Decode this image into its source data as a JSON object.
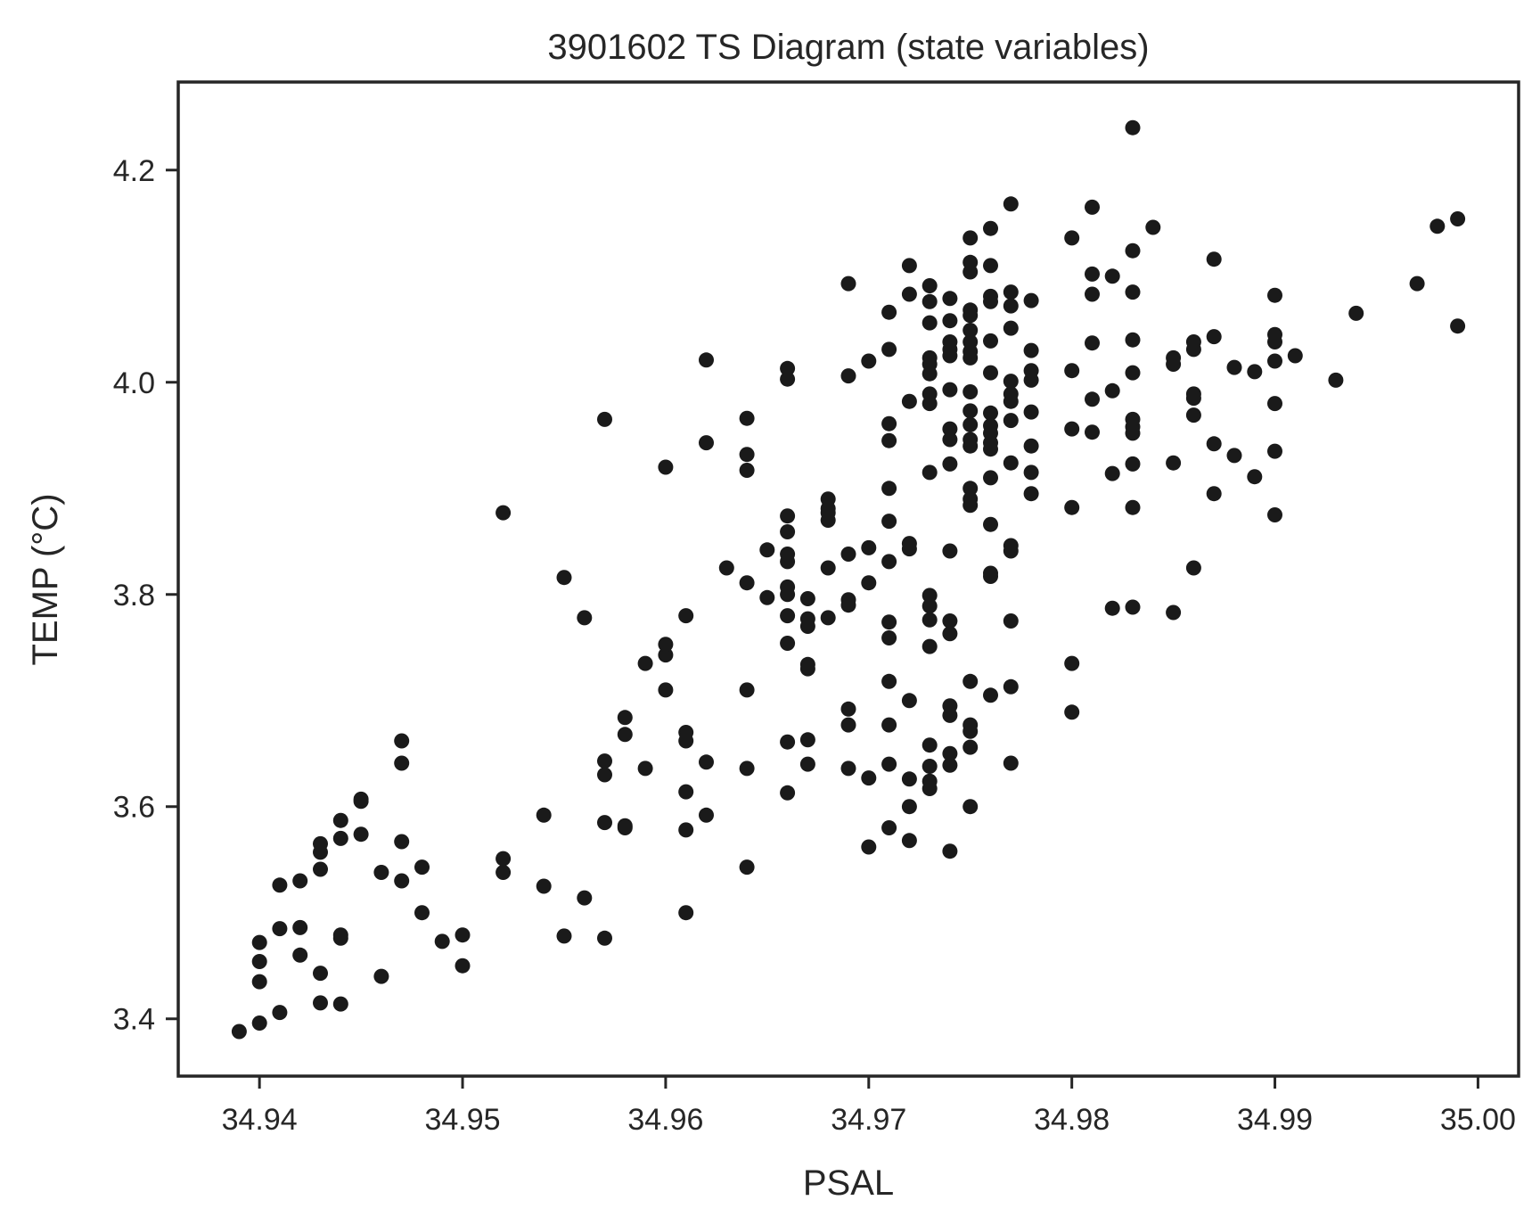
{
  "chart_data": {
    "type": "scatter",
    "title": "3901602 TS Diagram (state variables)",
    "xlabel": "PSAL",
    "ylabel": "TEMP (°C)",
    "xlim": [
      34.936,
      35.002
    ],
    "ylim": [
      3.346,
      4.283
    ],
    "xticks": [
      34.94,
      34.95,
      34.96,
      34.97,
      34.98,
      34.99,
      35.0
    ],
    "xtick_labels": [
      "34.94",
      "34.95",
      "34.96",
      "34.97",
      "34.98",
      "34.99",
      "35.00"
    ],
    "yticks": [
      3.4,
      3.6,
      3.8,
      4.0,
      4.2
    ],
    "ytick_labels": [
      "3.4",
      "3.6",
      "3.8",
      "4.0",
      "4.2"
    ],
    "grid": false,
    "marker_color": "#1a1a1a",
    "points": [
      [
        34.939,
        3.388
      ],
      [
        34.94,
        3.396
      ],
      [
        34.94,
        3.435
      ],
      [
        34.94,
        3.454
      ],
      [
        34.94,
        3.472
      ],
      [
        34.941,
        3.406
      ],
      [
        34.941,
        3.485
      ],
      [
        34.941,
        3.526
      ],
      [
        34.942,
        3.46
      ],
      [
        34.942,
        3.486
      ],
      [
        34.942,
        3.53
      ],
      [
        34.943,
        3.415
      ],
      [
        34.943,
        3.443
      ],
      [
        34.943,
        3.541
      ],
      [
        34.943,
        3.557
      ],
      [
        34.943,
        3.565
      ],
      [
        34.944,
        3.414
      ],
      [
        34.944,
        3.476
      ],
      [
        34.944,
        3.479
      ],
      [
        34.944,
        3.57
      ],
      [
        34.944,
        3.587
      ],
      [
        34.945,
        3.574
      ],
      [
        34.945,
        3.605
      ],
      [
        34.945,
        3.607
      ],
      [
        34.946,
        3.44
      ],
      [
        34.946,
        3.538
      ],
      [
        34.947,
        3.53
      ],
      [
        34.947,
        3.567
      ],
      [
        34.947,
        3.641
      ],
      [
        34.947,
        3.662
      ],
      [
        34.948,
        3.5
      ],
      [
        34.948,
        3.543
      ],
      [
        34.949,
        3.473
      ],
      [
        34.95,
        3.45
      ],
      [
        34.95,
        3.479
      ],
      [
        34.952,
        3.538
      ],
      [
        34.952,
        3.551
      ],
      [
        34.952,
        3.877
      ],
      [
        34.954,
        3.525
      ],
      [
        34.954,
        3.592
      ],
      [
        34.955,
        3.478
      ],
      [
        34.955,
        3.816
      ],
      [
        34.956,
        3.514
      ],
      [
        34.956,
        3.778
      ],
      [
        34.957,
        3.476
      ],
      [
        34.957,
        3.585
      ],
      [
        34.957,
        3.63
      ],
      [
        34.957,
        3.643
      ],
      [
        34.957,
        3.965
      ],
      [
        34.958,
        3.58
      ],
      [
        34.958,
        3.582
      ],
      [
        34.958,
        3.668
      ],
      [
        34.958,
        3.684
      ],
      [
        34.959,
        3.636
      ],
      [
        34.959,
        3.735
      ],
      [
        34.96,
        3.71
      ],
      [
        34.96,
        3.743
      ],
      [
        34.96,
        3.753
      ],
      [
        34.96,
        3.92
      ],
      [
        34.961,
        3.5
      ],
      [
        34.961,
        3.578
      ],
      [
        34.961,
        3.614
      ],
      [
        34.961,
        3.662
      ],
      [
        34.961,
        3.67
      ],
      [
        34.961,
        3.78
      ],
      [
        34.962,
        3.592
      ],
      [
        34.962,
        3.642
      ],
      [
        34.962,
        3.943
      ],
      [
        34.962,
        4.021
      ],
      [
        34.963,
        3.825
      ],
      [
        34.964,
        3.543
      ],
      [
        34.964,
        3.636
      ],
      [
        34.964,
        3.71
      ],
      [
        34.964,
        3.811
      ],
      [
        34.964,
        3.917
      ],
      [
        34.964,
        3.932
      ],
      [
        34.964,
        3.966
      ],
      [
        34.965,
        3.797
      ],
      [
        34.965,
        3.842
      ],
      [
        34.966,
        3.613
      ],
      [
        34.966,
        3.661
      ],
      [
        34.966,
        3.754
      ],
      [
        34.966,
        3.78
      ],
      [
        34.966,
        3.8
      ],
      [
        34.966,
        3.807
      ],
      [
        34.966,
        3.831
      ],
      [
        34.966,
        3.838
      ],
      [
        34.966,
        3.859
      ],
      [
        34.966,
        3.874
      ],
      [
        34.966,
        4.003
      ],
      [
        34.966,
        4.013
      ],
      [
        34.967,
        3.64
      ],
      [
        34.967,
        3.663
      ],
      [
        34.967,
        3.73
      ],
      [
        34.967,
        3.734
      ],
      [
        34.967,
        3.77
      ],
      [
        34.967,
        3.777
      ],
      [
        34.967,
        3.796
      ],
      [
        34.968,
        3.778
      ],
      [
        34.968,
        3.825
      ],
      [
        34.968,
        3.87
      ],
      [
        34.968,
        3.877
      ],
      [
        34.968,
        3.881
      ],
      [
        34.968,
        3.89
      ],
      [
        34.969,
        3.636
      ],
      [
        34.969,
        3.677
      ],
      [
        34.969,
        3.692
      ],
      [
        34.969,
        3.79
      ],
      [
        34.969,
        3.795
      ],
      [
        34.969,
        3.838
      ],
      [
        34.969,
        4.006
      ],
      [
        34.969,
        4.093
      ],
      [
        34.97,
        3.562
      ],
      [
        34.97,
        3.627
      ],
      [
        34.97,
        3.811
      ],
      [
        34.97,
        3.844
      ],
      [
        34.97,
        4.02
      ],
      [
        34.971,
        3.58
      ],
      [
        34.971,
        3.64
      ],
      [
        34.971,
        3.677
      ],
      [
        34.971,
        3.718
      ],
      [
        34.971,
        3.759
      ],
      [
        34.971,
        3.774
      ],
      [
        34.971,
        3.831
      ],
      [
        34.971,
        3.869
      ],
      [
        34.971,
        3.9
      ],
      [
        34.971,
        3.945
      ],
      [
        34.971,
        3.961
      ],
      [
        34.971,
        4.031
      ],
      [
        34.971,
        4.066
      ],
      [
        34.972,
        3.568
      ],
      [
        34.972,
        3.6
      ],
      [
        34.972,
        3.626
      ],
      [
        34.972,
        3.7
      ],
      [
        34.972,
        3.843
      ],
      [
        34.972,
        3.848
      ],
      [
        34.972,
        3.982
      ],
      [
        34.972,
        4.083
      ],
      [
        34.972,
        4.11
      ],
      [
        34.973,
        3.617
      ],
      [
        34.973,
        3.624
      ],
      [
        34.973,
        3.638
      ],
      [
        34.973,
        3.658
      ],
      [
        34.973,
        3.751
      ],
      [
        34.973,
        3.776
      ],
      [
        34.973,
        3.789
      ],
      [
        34.973,
        3.799
      ],
      [
        34.973,
        3.915
      ],
      [
        34.973,
        3.98
      ],
      [
        34.973,
        3.989
      ],
      [
        34.973,
        4.008
      ],
      [
        34.973,
        4.017
      ],
      [
        34.973,
        4.023
      ],
      [
        34.973,
        4.056
      ],
      [
        34.973,
        4.076
      ],
      [
        34.973,
        4.091
      ],
      [
        34.974,
        3.558
      ],
      [
        34.974,
        3.639
      ],
      [
        34.974,
        3.65
      ],
      [
        34.974,
        3.686
      ],
      [
        34.974,
        3.695
      ],
      [
        34.974,
        3.763
      ],
      [
        34.974,
        3.775
      ],
      [
        34.974,
        3.841
      ],
      [
        34.974,
        3.923
      ],
      [
        34.974,
        3.946
      ],
      [
        34.974,
        3.956
      ],
      [
        34.974,
        3.993
      ],
      [
        34.974,
        4.025
      ],
      [
        34.974,
        4.031
      ],
      [
        34.974,
        4.038
      ],
      [
        34.974,
        4.058
      ],
      [
        34.974,
        4.079
      ],
      [
        34.975,
        3.6
      ],
      [
        34.975,
        3.656
      ],
      [
        34.975,
        3.671
      ],
      [
        34.975,
        3.677
      ],
      [
        34.975,
        3.718
      ],
      [
        34.975,
        3.884
      ],
      [
        34.975,
        3.89
      ],
      [
        34.975,
        3.9
      ],
      [
        34.975,
        3.94
      ],
      [
        34.975,
        3.946
      ],
      [
        34.975,
        3.96
      ],
      [
        34.975,
        3.973
      ],
      [
        34.975,
        3.991
      ],
      [
        34.975,
        4.023
      ],
      [
        34.975,
        4.029
      ],
      [
        34.975,
        4.038
      ],
      [
        34.975,
        4.049
      ],
      [
        34.975,
        4.063
      ],
      [
        34.975,
        4.068
      ],
      [
        34.975,
        4.104
      ],
      [
        34.975,
        4.113
      ],
      [
        34.975,
        4.136
      ],
      [
        34.976,
        3.705
      ],
      [
        34.976,
        3.817
      ],
      [
        34.976,
        3.82
      ],
      [
        34.976,
        3.866
      ],
      [
        34.976,
        3.91
      ],
      [
        34.976,
        3.937
      ],
      [
        34.976,
        3.943
      ],
      [
        34.976,
        3.952
      ],
      [
        34.976,
        3.959
      ],
      [
        34.976,
        3.971
      ],
      [
        34.976,
        4.009
      ],
      [
        34.976,
        4.039
      ],
      [
        34.976,
        4.076
      ],
      [
        34.976,
        4.081
      ],
      [
        34.976,
        4.11
      ],
      [
        34.976,
        4.145
      ],
      [
        34.977,
        3.641
      ],
      [
        34.977,
        3.713
      ],
      [
        34.977,
        3.775
      ],
      [
        34.977,
        3.841
      ],
      [
        34.977,
        3.846
      ],
      [
        34.977,
        3.924
      ],
      [
        34.977,
        3.964
      ],
      [
        34.977,
        3.982
      ],
      [
        34.977,
        3.989
      ],
      [
        34.977,
        4.001
      ],
      [
        34.977,
        4.051
      ],
      [
        34.977,
        4.072
      ],
      [
        34.977,
        4.085
      ],
      [
        34.977,
        4.168
      ],
      [
        34.978,
        3.895
      ],
      [
        34.978,
        3.915
      ],
      [
        34.978,
        3.94
      ],
      [
        34.978,
        3.972
      ],
      [
        34.978,
        4.002
      ],
      [
        34.978,
        4.011
      ],
      [
        34.978,
        4.03
      ],
      [
        34.978,
        4.077
      ],
      [
        34.98,
        3.689
      ],
      [
        34.98,
        3.735
      ],
      [
        34.98,
        3.882
      ],
      [
        34.98,
        3.956
      ],
      [
        34.98,
        4.011
      ],
      [
        34.98,
        4.136
      ],
      [
        34.981,
        3.953
      ],
      [
        34.981,
        3.984
      ],
      [
        34.981,
        4.037
      ],
      [
        34.981,
        4.083
      ],
      [
        34.981,
        4.102
      ],
      [
        34.981,
        4.165
      ],
      [
        34.982,
        3.787
      ],
      [
        34.982,
        3.914
      ],
      [
        34.982,
        3.992
      ],
      [
        34.982,
        4.1
      ],
      [
        34.983,
        3.788
      ],
      [
        34.983,
        3.882
      ],
      [
        34.983,
        3.923
      ],
      [
        34.983,
        3.952
      ],
      [
        34.983,
        3.958
      ],
      [
        34.983,
        3.965
      ],
      [
        34.983,
        4.009
      ],
      [
        34.983,
        4.04
      ],
      [
        34.983,
        4.085
      ],
      [
        34.983,
        4.124
      ],
      [
        34.983,
        4.24
      ],
      [
        34.984,
        4.146
      ],
      [
        34.985,
        3.783
      ],
      [
        34.985,
        3.924
      ],
      [
        34.985,
        4.017
      ],
      [
        34.985,
        4.023
      ],
      [
        34.986,
        3.825
      ],
      [
        34.986,
        3.969
      ],
      [
        34.986,
        3.985
      ],
      [
        34.986,
        3.989
      ],
      [
        34.986,
        4.031
      ],
      [
        34.986,
        4.038
      ],
      [
        34.987,
        3.895
      ],
      [
        34.987,
        3.942
      ],
      [
        34.987,
        4.043
      ],
      [
        34.987,
        4.116
      ],
      [
        34.988,
        3.931
      ],
      [
        34.988,
        4.014
      ],
      [
        34.989,
        3.911
      ],
      [
        34.989,
        4.01
      ],
      [
        34.99,
        3.875
      ],
      [
        34.99,
        3.935
      ],
      [
        34.99,
        3.98
      ],
      [
        34.99,
        4.02
      ],
      [
        34.99,
        4.038
      ],
      [
        34.99,
        4.045
      ],
      [
        34.99,
        4.082
      ],
      [
        34.991,
        4.025
      ],
      [
        34.993,
        4.002
      ],
      [
        34.994,
        4.065
      ],
      [
        34.997,
        4.093
      ],
      [
        34.998,
        4.147
      ],
      [
        34.999,
        4.053
      ],
      [
        34.999,
        4.154
      ]
    ]
  }
}
